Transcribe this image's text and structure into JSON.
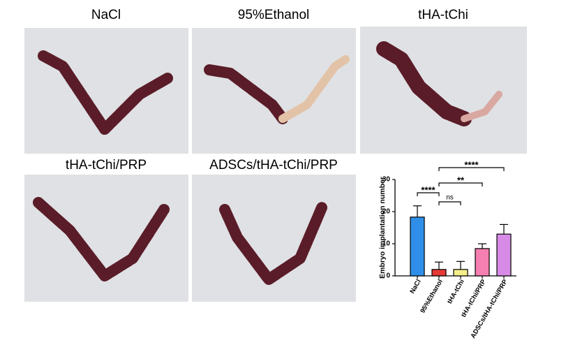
{
  "panels": [
    {
      "title": "NaCl"
    },
    {
      "title": "95%Ethanol"
    },
    {
      "title": "tHA-tChi"
    },
    {
      "title": "tHA-tChi/PRP"
    },
    {
      "title": "ADSCs/tHA-tChi/PRP"
    }
  ],
  "chart_data": {
    "type": "bar",
    "y_label": "Embryo implantation number",
    "categories": [
      "NaCl",
      "95%Ethanol",
      "tHA-tChi",
      "tHA-tChi/PRP",
      "ADSCs/tHA-tChi/PRP"
    ],
    "values": [
      18.3,
      2,
      2,
      8.5,
      13
    ],
    "errors": [
      3.5,
      2.3,
      2.5,
      1.5,
      3
    ],
    "colors": [
      "#2f8fe8",
      "#e53935",
      "#f3ee8a",
      "#f57fb0",
      "#d88be6"
    ],
    "ylim": [
      0,
      30
    ],
    "yticks": [
      0,
      10,
      20,
      30
    ],
    "annotations": [
      {
        "text": "****",
        "from": "95%Ethanol",
        "to": "ADSCs/tHA-tChi/PRP"
      },
      {
        "text": "**",
        "from": "95%Ethanol",
        "to": "tHA-tChi/PRP"
      },
      {
        "text": "****",
        "from": "NaCl",
        "to": "95%Ethanol"
      },
      {
        "text": "ns",
        "from": "95%Ethanol",
        "to": "tHA-tChi"
      }
    ]
  }
}
